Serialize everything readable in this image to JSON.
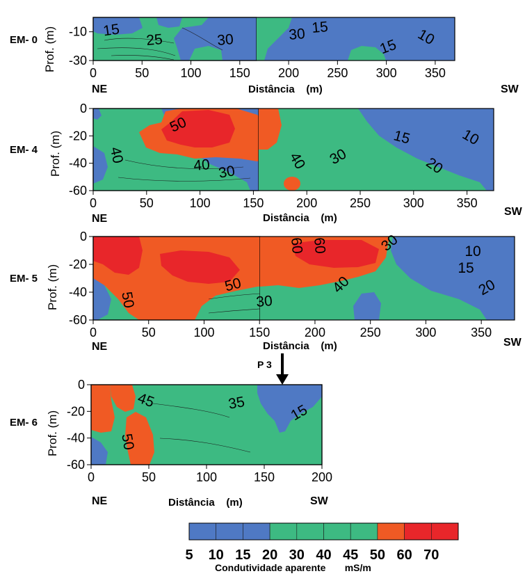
{
  "chart_data": [
    {
      "type": "heatmap",
      "profile": "EM- 0",
      "xlabel": "Distância",
      "xunit": "(m)",
      "ylabel": "Prof.",
      "yunit": "(m)",
      "xlim": [
        0,
        370
      ],
      "ylim": [
        -30,
        0
      ],
      "xticks": [
        "0",
        "50",
        "100",
        "150",
        "200",
        "250",
        "300",
        "350"
      ],
      "yticks": [
        "-10",
        "-30"
      ],
      "start_direction": "NE",
      "end_direction": "SW",
      "contour_labels": [
        "15",
        "25",
        "30",
        "30",
        "15",
        "10",
        "15"
      ]
    },
    {
      "type": "heatmap",
      "profile": "EM- 4",
      "xlabel": "Distância",
      "xunit": "(m)",
      "ylabel": "Prof. (m)",
      "xlim": [
        0,
        375
      ],
      "ylim": [
        -60,
        0
      ],
      "xticks": [
        "0",
        "50",
        "100",
        "150",
        "200",
        "250",
        "300",
        "350"
      ],
      "yticks": [
        "0",
        "-20",
        "-40",
        "-60"
      ],
      "start_direction": "NE",
      "end_direction": "SW",
      "contour_labels": [
        "50",
        "40",
        "40",
        "30",
        "40",
        "30",
        "15",
        "10",
        "20"
      ]
    },
    {
      "type": "heatmap",
      "profile": "EM- 5",
      "xlabel": "Distância",
      "xunit": "(m)",
      "ylabel": "Prof.",
      "yunit": "(m)",
      "xlim": [
        0,
        380
      ],
      "ylim": [
        -60,
        0
      ],
      "xticks": [
        "0",
        "50",
        "100",
        "150",
        "200",
        "250",
        "300",
        "350"
      ],
      "yticks": [
        "0",
        "-20",
        "-40",
        "-60"
      ],
      "start_direction": "NE",
      "end_direction": "SW",
      "contour_labels": [
        "60",
        "60",
        "30",
        "10",
        "15",
        "20",
        "50",
        "50",
        "30",
        "40"
      ]
    },
    {
      "type": "heatmap",
      "profile": "EM- 6",
      "xlabel": "Distância",
      "xunit": "(m)",
      "ylabel": "Prof.",
      "yunit": "(m)",
      "xlim": [
        0,
        200
      ],
      "ylim": [
        -60,
        0
      ],
      "xticks": [
        "0",
        "50",
        "100",
        "150",
        "200"
      ],
      "yticks": [
        "0",
        "-20",
        "-40",
        "-60"
      ],
      "start_direction": "NE",
      "end_direction": "SW",
      "contour_labels": [
        "45",
        "35",
        "15",
        "50"
      ],
      "marker": {
        "label": "P 3",
        "x": 166
      }
    }
  ],
  "legend": {
    "title": "Condutividade aparente",
    "unit": "mS/m",
    "boundaries": [
      "5",
      "10",
      "15",
      "20",
      "30",
      "40",
      "45",
      "50",
      "60",
      "70"
    ],
    "colors": [
      "#4f79c4",
      "#4f79c4",
      "#4f79c4",
      "#3dba82",
      "#3dba82",
      "#3dba82",
      "#3dba82",
      "#f05a24",
      "#e8262a",
      "#e8262a"
    ]
  },
  "colors": {
    "low": "#4f79c4",
    "medium": "#3dba82",
    "high": "#f05a24",
    "very_high": "#e8262a"
  }
}
